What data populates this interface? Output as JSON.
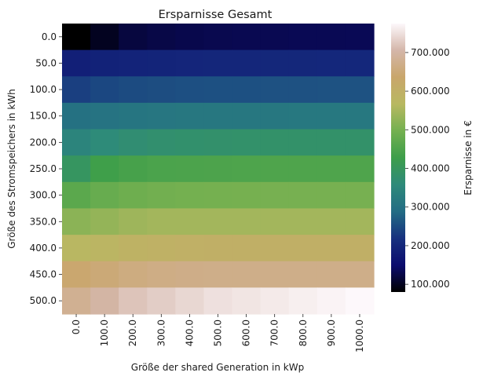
{
  "chart_data": {
    "type": "heatmap",
    "title": "Ersparnisse Gesamt",
    "xlabel": "Größe der shared Generation in kWp",
    "ylabel": "Größe des Stromspeichers in kWh",
    "x": [
      "0.0",
      "100.0",
      "200.0",
      "300.0",
      "400.0",
      "500.0",
      "600.0",
      "700.0",
      "800.0",
      "900.0",
      "1000.0"
    ],
    "y": [
      "0.0",
      "50.0",
      "100.0",
      "150.0",
      "200.0",
      "250.0",
      "300.0",
      "350.0",
      "400.0",
      "450.0",
      "500.0"
    ],
    "values": [
      [
        80000,
        100000,
        120000,
        125000,
        128000,
        130000,
        131000,
        132000,
        133000,
        133000,
        134000
      ],
      [
        185000,
        190000,
        193000,
        195000,
        197000,
        198000,
        199000,
        200000,
        200000,
        201000,
        201000
      ],
      [
        235000,
        245000,
        250000,
        252000,
        254000,
        255000,
        256000,
        257000,
        257000,
        258000,
        258000
      ],
      [
        300000,
        305000,
        310000,
        312000,
        313000,
        314000,
        315000,
        315000,
        316000,
        316000,
        316000
      ],
      [
        345000,
        360000,
        370000,
        375000,
        378000,
        380000,
        381000,
        382000,
        382000,
        383000,
        383000
      ],
      [
        395000,
        430000,
        440000,
        445000,
        447000,
        448000,
        449000,
        450000,
        450000,
        450000,
        450000
      ],
      [
        465000,
        480000,
        490000,
        495000,
        497000,
        498000,
        499000,
        500000,
        500000,
        500000,
        500000
      ],
      [
        520000,
        530000,
        540000,
        545000,
        545000,
        545000,
        545000,
        545000,
        545000,
        545000,
        545000
      ],
      [
        570000,
        580000,
        590000,
        595000,
        598000,
        600000,
        600000,
        600000,
        600000,
        600000,
        600000
      ],
      [
        640000,
        650000,
        660000,
        665000,
        668000,
        670000,
        670000,
        670000,
        670000,
        670000,
        670000
      ],
      [
        680000,
        700000,
        720000,
        730000,
        740000,
        750000,
        755000,
        760000,
        765000,
        770000,
        775000
      ]
    ],
    "colorbar": {
      "label": "Ersparnisse in €",
      "range": [
        80000,
        775000
      ],
      "ticks": [
        100000,
        200000,
        300000,
        400000,
        500000,
        600000,
        700000
      ],
      "tick_labels": [
        "100.000",
        "200.000",
        "300.000",
        "400.000",
        "500.000",
        "600.000",
        "700.000"
      ]
    },
    "colormap_stops": [
      "#000000",
      "#0c0c6e",
      "#17317f",
      "#236c84",
      "#2e8a7a",
      "#3d9e4a",
      "#74b050",
      "#b8b861",
      "#c9a66b",
      "#d4b6a9",
      "#fdf8fb"
    ]
  }
}
